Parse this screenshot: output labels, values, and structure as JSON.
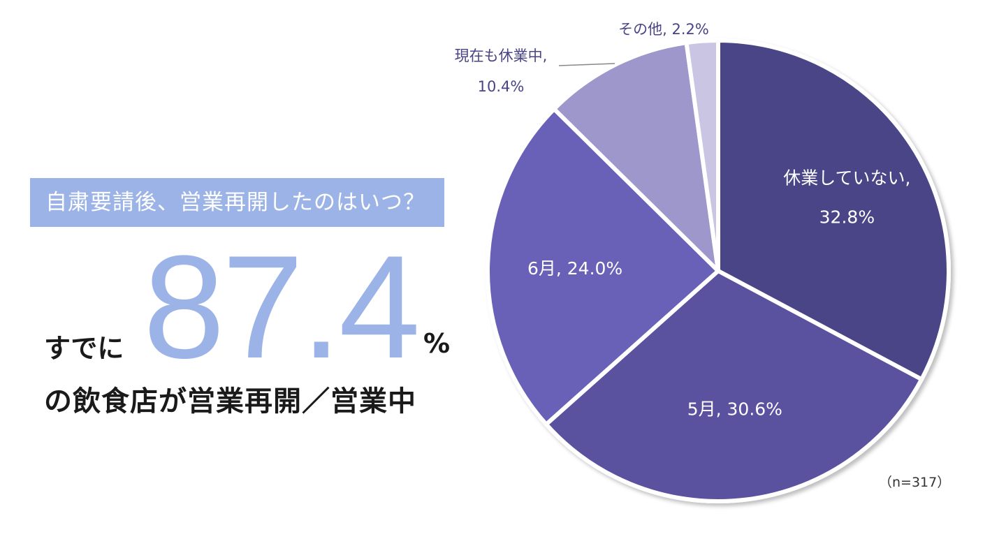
{
  "headline": "自粛要請後、営業再開したのはいつ？",
  "big_stat": {
    "prefix": "すでに",
    "value": "87.4",
    "unit": "%",
    "suffix": "の飲食店が営業再開／営業中"
  },
  "sample_note": "（n=317）",
  "chart_data": {
    "type": "pie",
    "title": "",
    "slices": [
      {
        "name": "休業していない",
        "value": 32.8,
        "label": "休業していない, 32.8%",
        "color": "#4a4486"
      },
      {
        "name": "5月",
        "value": 30.6,
        "label": "5月, 30.6%",
        "color": "#5a519f"
      },
      {
        "name": "6月",
        "value": 24.0,
        "label": "6月, 24.0%",
        "color": "#6961b7"
      },
      {
        "name": "現在も休業中",
        "value": 10.4,
        "label": "現在も休業中, 10.4%",
        "color": "#9d97cb"
      },
      {
        "name": "その他",
        "value": 2.2,
        "label": "その他, 2.2%",
        "color": "#c9c5e2"
      }
    ],
    "label_lines": [
      [
        "休業していない,",
        "32.8%"
      ],
      [
        "5月, 30.6%"
      ],
      [
        "6月, 24.0%"
      ],
      [
        "現在も休業中,",
        "10.4%"
      ],
      [
        "その他, 2.2%"
      ]
    ]
  }
}
